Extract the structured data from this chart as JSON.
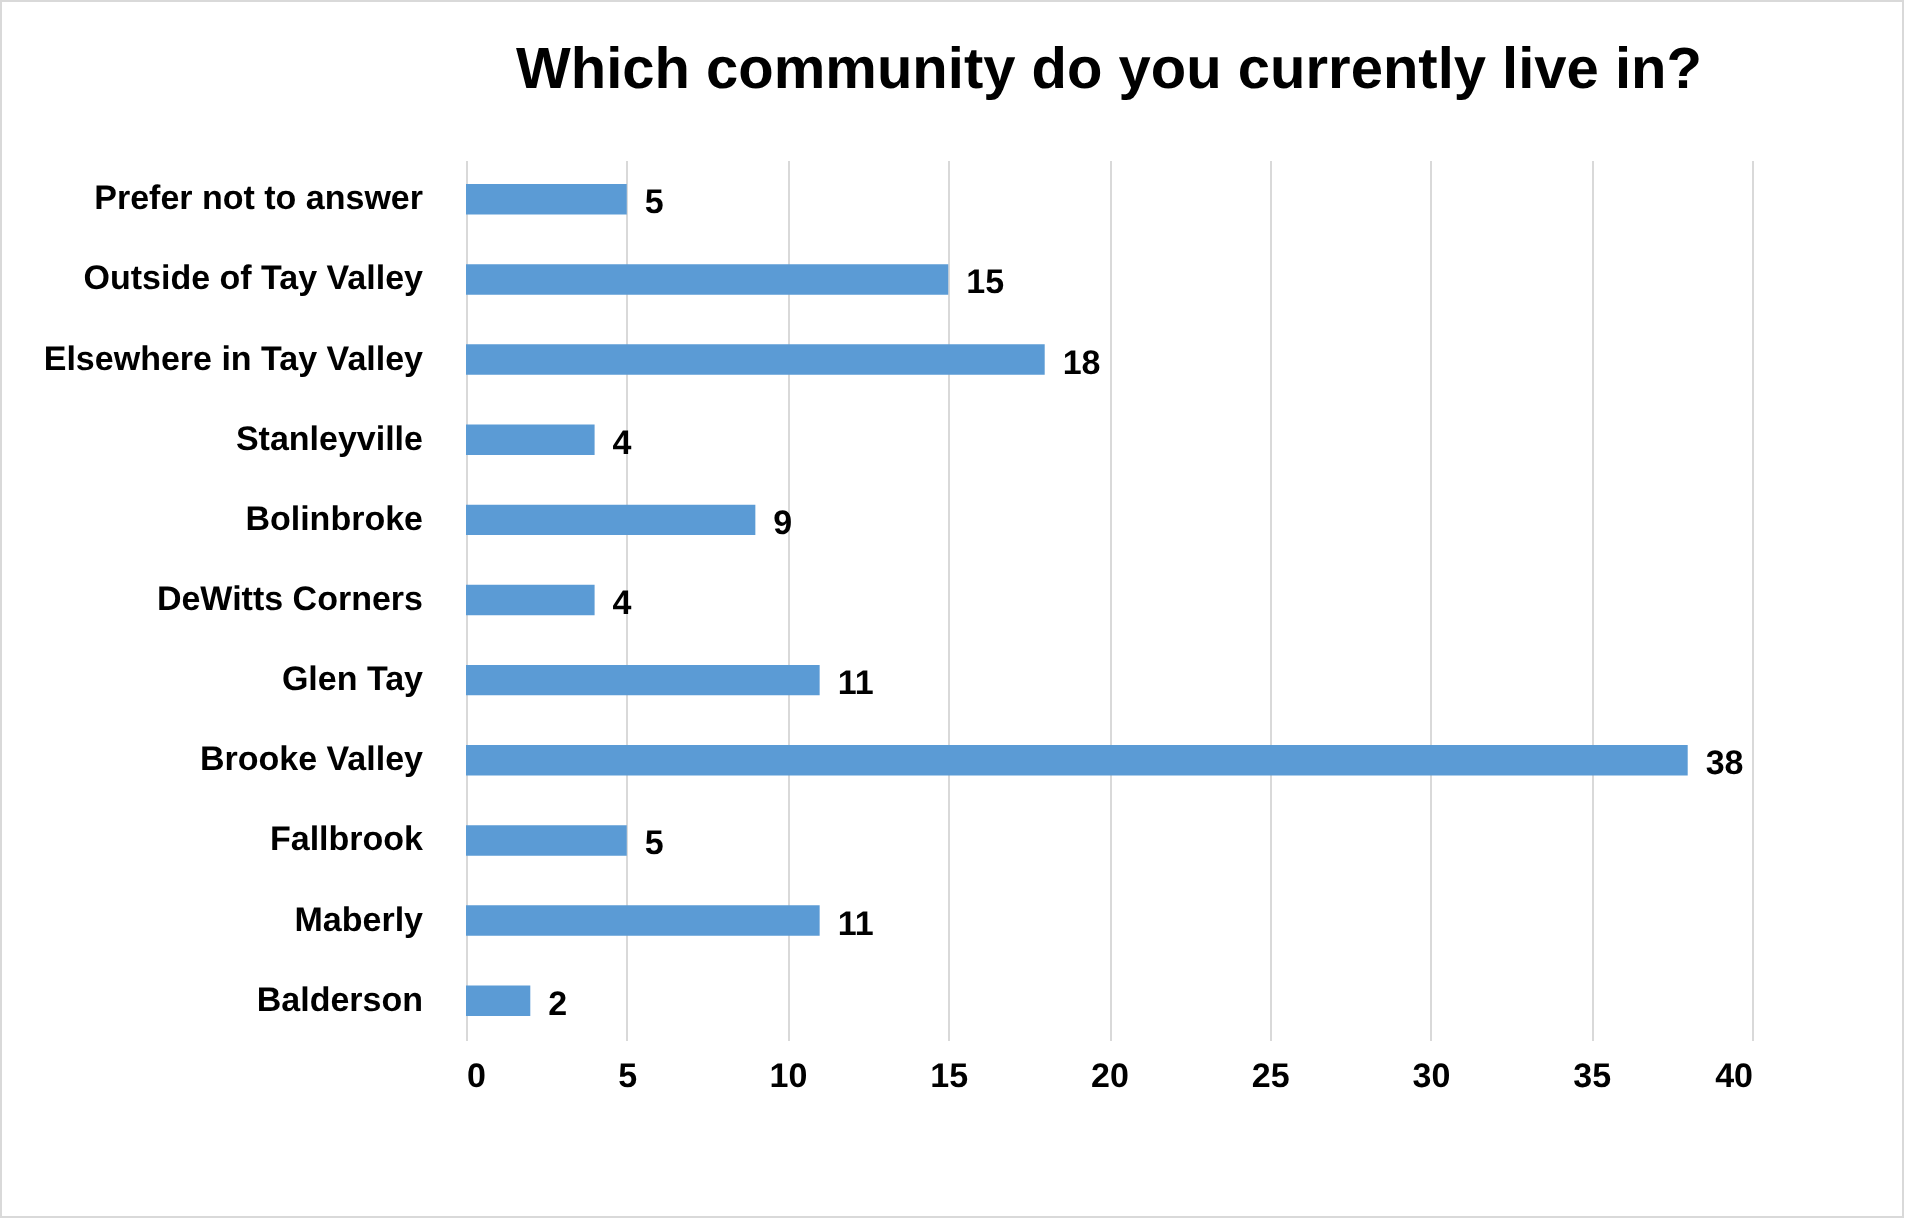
{
  "chart_data": {
    "type": "bar",
    "orientation": "horizontal",
    "title": "Which community do you currently live in?",
    "categories": [
      "Prefer not to answer",
      "Outside of Tay Valley",
      "Elsewhere in Tay Valley",
      "Stanleyville",
      "Bolinbroke",
      "DeWitts Corners",
      "Glen Tay",
      "Brooke Valley",
      "Fallbrook",
      "Maberly",
      "Balderson"
    ],
    "values": [
      5,
      15,
      18,
      4,
      9,
      4,
      11,
      38,
      5,
      11,
      2
    ],
    "color": "#5b9bd5",
    "xlim": [
      0,
      40
    ],
    "xticks": [
      0,
      5,
      10,
      15,
      20,
      25,
      30,
      35,
      40
    ],
    "grid": "x",
    "data_labels": true
  }
}
